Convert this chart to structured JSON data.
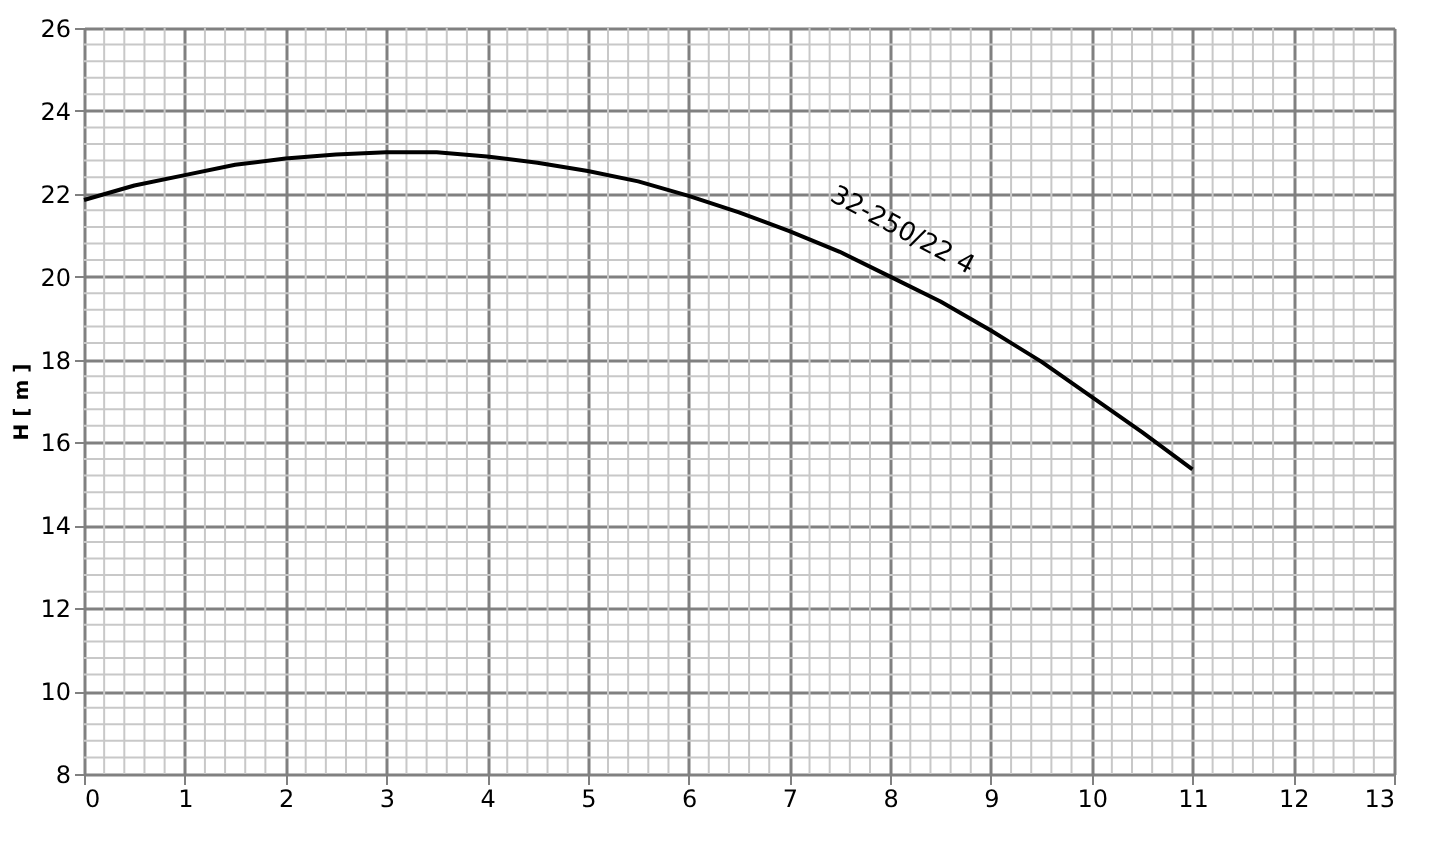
{
  "chart_data": {
    "type": "line",
    "ylabel": "H [ m ]",
    "x": [
      0,
      0.5,
      1,
      1.5,
      2,
      2.5,
      3,
      3.5,
      4,
      4.5,
      5,
      5.5,
      6,
      6.5,
      7,
      7.5,
      8,
      8.5,
      9,
      9.5,
      10,
      10.5,
      11
    ],
    "series": [
      {
        "color": "#000000",
        "values": [
          21.85,
          22.2,
          22.45,
          22.7,
          22.85,
          22.95,
          23.0,
          23.0,
          22.9,
          22.75,
          22.55,
          22.3,
          21.95,
          21.55,
          21.1,
          20.6,
          20.0,
          19.4,
          18.7,
          17.95,
          17.1,
          16.25,
          15.35
        ]
      }
    ],
    "xlim": [
      0,
      13
    ],
    "xticks": [
      0,
      1,
      2,
      3,
      4,
      5,
      6,
      7,
      8,
      9,
      10,
      11,
      12,
      13
    ],
    "ylim": [
      8,
      26
    ],
    "yticks": [
      8,
      10,
      12,
      14,
      16,
      18,
      20,
      22,
      24,
      26
    ],
    "grid": true,
    "marker": "none",
    "line_style": "solid",
    "annotations": [
      {
        "text": "32-250/22 4",
        "x": 7.9,
        "y": 20.1
      }
    ]
  }
}
